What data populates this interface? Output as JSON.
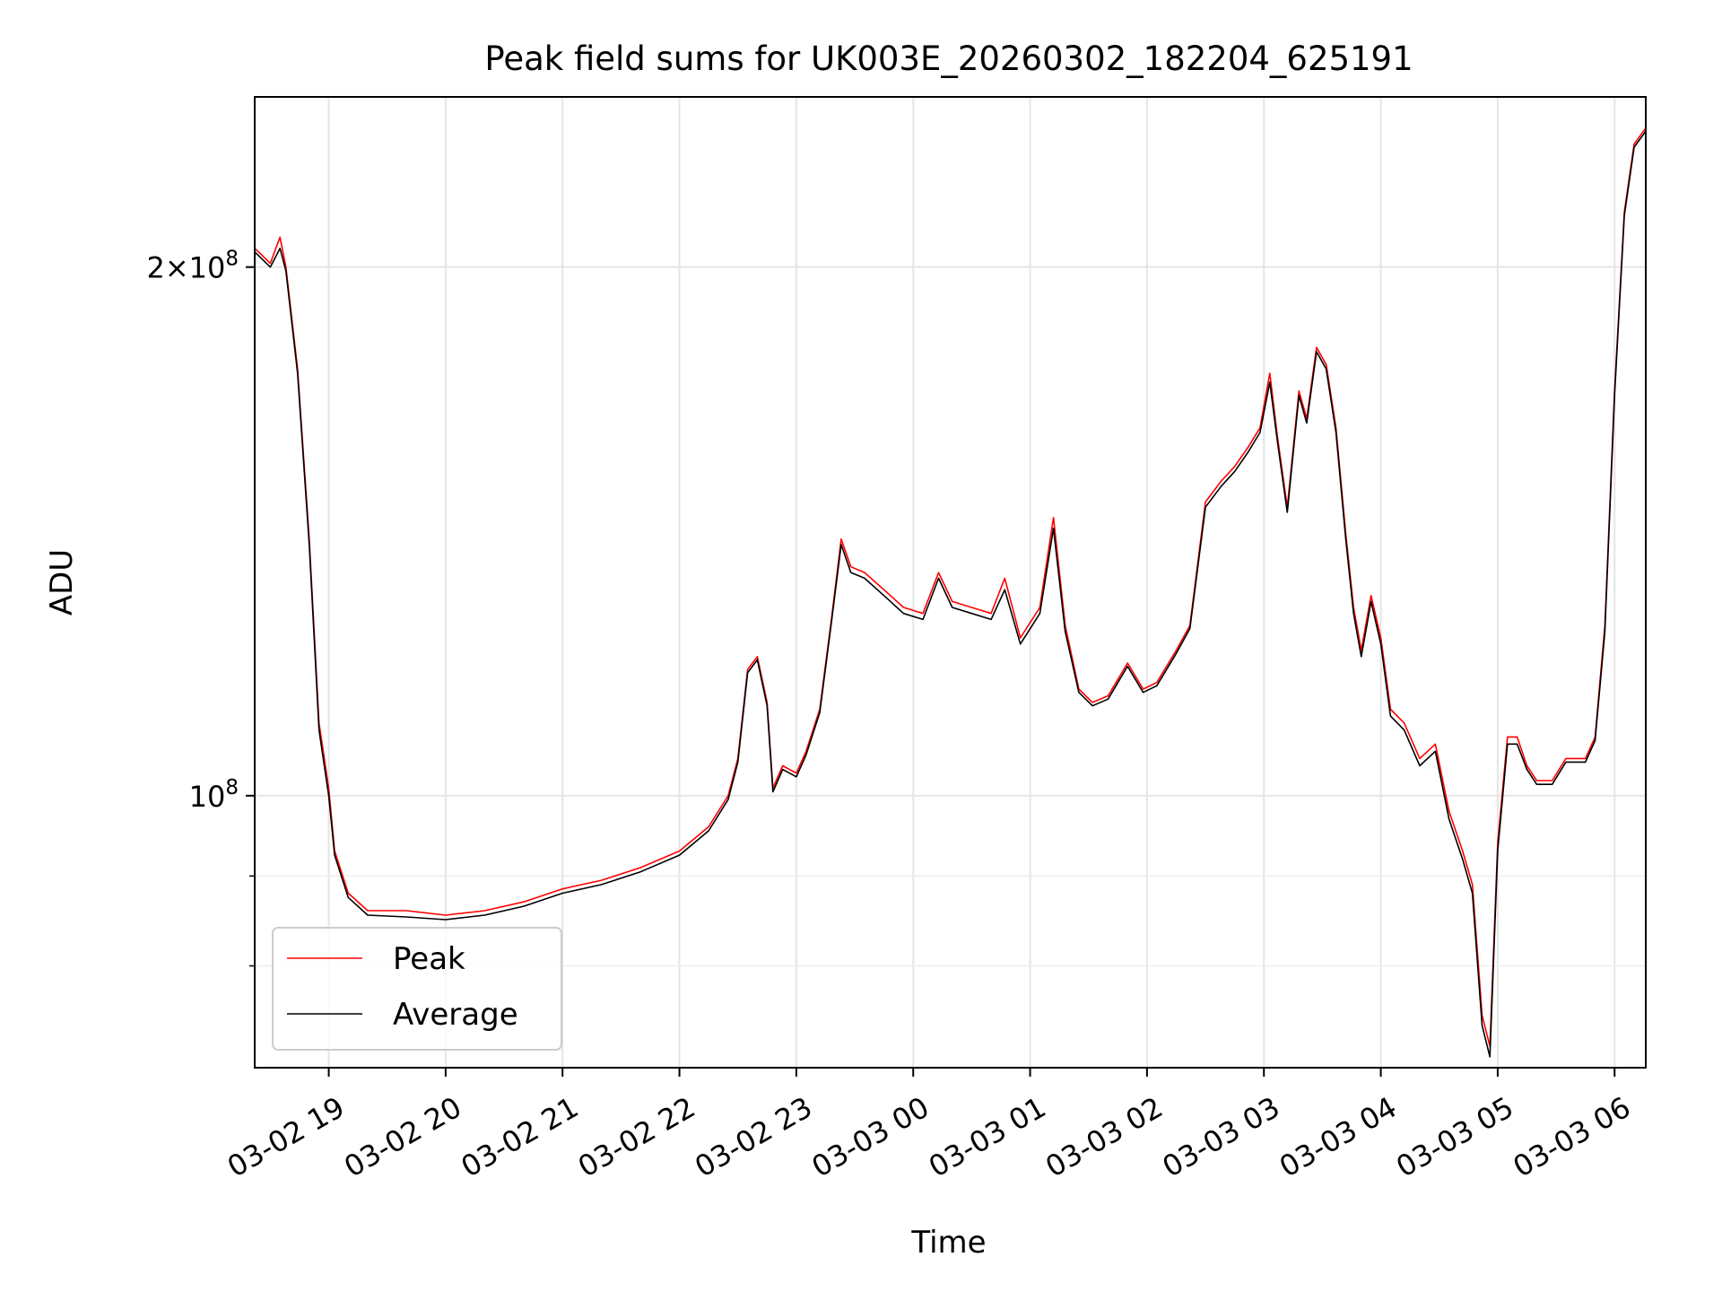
{
  "chart_data": {
    "type": "line",
    "title": "Peak field sums for UK003E_20260302_182204_625191",
    "xlabel": "Time",
    "ylabel": "ADU",
    "yscale": "log",
    "grid": true,
    "legend_placement": "lower-left",
    "xlim": [
      "2026-03-02 18:22",
      "2026-03-03 06:16"
    ],
    "ylim": [
      70000000,
      250000000
    ],
    "x_ticks": [
      {
        "t": "2026-03-02 19:00",
        "label": "03-02 19"
      },
      {
        "t": "2026-03-02 20:00",
        "label": "03-02 20"
      },
      {
        "t": "2026-03-02 21:00",
        "label": "03-02 21"
      },
      {
        "t": "2026-03-02 22:00",
        "label": "03-02 22"
      },
      {
        "t": "2026-03-02 23:00",
        "label": "03-02 23"
      },
      {
        "t": "2026-03-03 00:00",
        "label": "03-03 00"
      },
      {
        "t": "2026-03-03 01:00",
        "label": "03-03 01"
      },
      {
        "t": "2026-03-03 02:00",
        "label": "03-03 02"
      },
      {
        "t": "2026-03-03 03:00",
        "label": "03-03 03"
      },
      {
        "t": "2026-03-03 04:00",
        "label": "03-03 04"
      },
      {
        "t": "2026-03-03 05:00",
        "label": "03-03 05"
      },
      {
        "t": "2026-03-03 06:00",
        "label": "03-03 06"
      }
    ],
    "y_major_ticks": [
      {
        "v": 100000000,
        "base": "10",
        "exp": "8",
        "coef": ""
      },
      {
        "v": 200000000,
        "base": "10",
        "exp": "8",
        "coef": "2"
      }
    ],
    "y_minor_ticks": [
      80000000,
      90000000
    ],
    "series": [
      {
        "name": "Peak",
        "color": "#ff0000",
        "points": [
          [
            "2026-03-02 18:22",
            205000000
          ],
          [
            "2026-03-02 18:30",
            201000000
          ],
          [
            "2026-03-02 18:35",
            208000000
          ],
          [
            "2026-03-02 18:38",
            200000000
          ],
          [
            "2026-03-02 18:44",
            175000000
          ],
          [
            "2026-03-02 18:50",
            140000000
          ],
          [
            "2026-03-02 18:55",
            110000000
          ],
          [
            "2026-03-02 19:00",
            101000000
          ],
          [
            "2026-03-02 19:03",
            93000000
          ],
          [
            "2026-03-02 19:10",
            88000000
          ],
          [
            "2026-03-02 19:20",
            86000000
          ],
          [
            "2026-03-02 19:40",
            86000000
          ],
          [
            "2026-03-02 20:00",
            85500000
          ],
          [
            "2026-03-02 20:20",
            86000000
          ],
          [
            "2026-03-02 20:40",
            87000000
          ],
          [
            "2026-03-02 21:00",
            88500000
          ],
          [
            "2026-03-02 21:20",
            89500000
          ],
          [
            "2026-03-02 21:40",
            91000000
          ],
          [
            "2026-03-02 22:00",
            93000000
          ],
          [
            "2026-03-02 22:15",
            96000000
          ],
          [
            "2026-03-02 22:25",
            100000000
          ],
          [
            "2026-03-02 22:30",
            105000000
          ],
          [
            "2026-03-02 22:35",
            118000000
          ],
          [
            "2026-03-02 22:40",
            120000000
          ],
          [
            "2026-03-02 22:45",
            113000000
          ],
          [
            "2026-03-02 22:48",
            101000000
          ],
          [
            "2026-03-02 22:53",
            104000000
          ],
          [
            "2026-03-02 23:00",
            103000000
          ],
          [
            "2026-03-02 23:05",
            106000000
          ],
          [
            "2026-03-02 23:12",
            112000000
          ],
          [
            "2026-03-02 23:18",
            126000000
          ],
          [
            "2026-03-02 23:23",
            140000000
          ],
          [
            "2026-03-02 23:28",
            135000000
          ],
          [
            "2026-03-02 23:35",
            134000000
          ],
          [
            "2026-03-02 23:45",
            131000000
          ],
          [
            "2026-03-02 23:55",
            128000000
          ],
          [
            "2026-03-03 00:05",
            127000000
          ],
          [
            "2026-03-03 00:13",
            134000000
          ],
          [
            "2026-03-03 00:20",
            129000000
          ],
          [
            "2026-03-03 00:30",
            128000000
          ],
          [
            "2026-03-03 00:40",
            127000000
          ],
          [
            "2026-03-03 00:47",
            133000000
          ],
          [
            "2026-03-03 00:55",
            123000000
          ],
          [
            "2026-03-03 01:05",
            128000000
          ],
          [
            "2026-03-03 01:12",
            144000000
          ],
          [
            "2026-03-03 01:18",
            125000000
          ],
          [
            "2026-03-03 01:25",
            115000000
          ],
          [
            "2026-03-03 01:32",
            113000000
          ],
          [
            "2026-03-03 01:40",
            114000000
          ],
          [
            "2026-03-03 01:50",
            119000000
          ],
          [
            "2026-03-03 01:58",
            115000000
          ],
          [
            "2026-03-03 02:05",
            116000000
          ],
          [
            "2026-03-03 02:15",
            121000000
          ],
          [
            "2026-03-03 02:22",
            125000000
          ],
          [
            "2026-03-03 02:30",
            147000000
          ],
          [
            "2026-03-03 02:38",
            151000000
          ],
          [
            "2026-03-03 02:45",
            154000000
          ],
          [
            "2026-03-03 02:52",
            158000000
          ],
          [
            "2026-03-03 02:58",
            162000000
          ],
          [
            "2026-03-03 03:03",
            174000000
          ],
          [
            "2026-03-03 03:07",
            160000000
          ],
          [
            "2026-03-03 03:12",
            146000000
          ],
          [
            "2026-03-03 03:18",
            170000000
          ],
          [
            "2026-03-03 03:22",
            164000000
          ],
          [
            "2026-03-03 03:27",
            180000000
          ],
          [
            "2026-03-03 03:32",
            176000000
          ],
          [
            "2026-03-03 03:37",
            162000000
          ],
          [
            "2026-03-03 03:42",
            141000000
          ],
          [
            "2026-03-03 03:46",
            128000000
          ],
          [
            "2026-03-03 03:50",
            121000000
          ],
          [
            "2026-03-03 03:55",
            130000000
          ],
          [
            "2026-03-03 04:00",
            123000000
          ],
          [
            "2026-03-03 04:05",
            112000000
          ],
          [
            "2026-03-03 04:12",
            110000000
          ],
          [
            "2026-03-03 04:20",
            105000000
          ],
          [
            "2026-03-03 04:28",
            107000000
          ],
          [
            "2026-03-03 04:35",
            98000000
          ],
          [
            "2026-03-03 04:42",
            93000000
          ],
          [
            "2026-03-03 04:47",
            89000000
          ],
          [
            "2026-03-03 04:52",
            75000000
          ],
          [
            "2026-03-03 04:56",
            72000000
          ],
          [
            "2026-03-03 05:00",
            94000000
          ],
          [
            "2026-03-03 05:05",
            108000000
          ],
          [
            "2026-03-03 05:10",
            108000000
          ],
          [
            "2026-03-03 05:15",
            104000000
          ],
          [
            "2026-03-03 05:20",
            102000000
          ],
          [
            "2026-03-03 05:28",
            102000000
          ],
          [
            "2026-03-03 05:35",
            105000000
          ],
          [
            "2026-03-03 05:45",
            105000000
          ],
          [
            "2026-03-03 05:50",
            108000000
          ],
          [
            "2026-03-03 05:55",
            125000000
          ],
          [
            "2026-03-03 06:00",
            170000000
          ],
          [
            "2026-03-03 06:05",
            215000000
          ],
          [
            "2026-03-03 06:10",
            235000000
          ],
          [
            "2026-03-03 06:16",
            240000000
          ]
        ]
      },
      {
        "name": "Average",
        "color": "#000000",
        "points": [
          [
            "2026-03-02 18:22",
            204000000
          ],
          [
            "2026-03-02 18:30",
            200000000
          ],
          [
            "2026-03-02 18:35",
            205000000
          ],
          [
            "2026-03-02 18:38",
            199000000
          ],
          [
            "2026-03-02 18:44",
            174000000
          ],
          [
            "2026-03-02 18:50",
            139000000
          ],
          [
            "2026-03-02 18:55",
            109000000
          ],
          [
            "2026-03-02 19:00",
            100000000
          ],
          [
            "2026-03-02 19:03",
            92500000
          ],
          [
            "2026-03-02 19:10",
            87500000
          ],
          [
            "2026-03-02 19:20",
            85500000
          ],
          [
            "2026-03-02 19:40",
            85300000
          ],
          [
            "2026-03-02 20:00",
            85000000
          ],
          [
            "2026-03-02 20:20",
            85500000
          ],
          [
            "2026-03-02 20:40",
            86500000
          ],
          [
            "2026-03-02 21:00",
            88000000
          ],
          [
            "2026-03-02 21:20",
            89000000
          ],
          [
            "2026-03-02 21:40",
            90500000
          ],
          [
            "2026-03-02 22:00",
            92500000
          ],
          [
            "2026-03-02 22:15",
            95500000
          ],
          [
            "2026-03-02 22:25",
            99500000
          ],
          [
            "2026-03-02 22:30",
            104500000
          ],
          [
            "2026-03-02 22:35",
            117500000
          ],
          [
            "2026-03-02 22:40",
            119500000
          ],
          [
            "2026-03-02 22:45",
            112500000
          ],
          [
            "2026-03-02 22:48",
            100500000
          ],
          [
            "2026-03-02 22:53",
            103500000
          ],
          [
            "2026-03-02 23:00",
            102500000
          ],
          [
            "2026-03-02 23:05",
            105500000
          ],
          [
            "2026-03-02 23:12",
            111500000
          ],
          [
            "2026-03-02 23:18",
            125500000
          ],
          [
            "2026-03-02 23:23",
            139000000
          ],
          [
            "2026-03-02 23:28",
            134000000
          ],
          [
            "2026-03-02 23:35",
            133000000
          ],
          [
            "2026-03-02 23:45",
            130000000
          ],
          [
            "2026-03-02 23:55",
            127000000
          ],
          [
            "2026-03-03 00:05",
            126000000
          ],
          [
            "2026-03-03 00:13",
            133000000
          ],
          [
            "2026-03-03 00:20",
            128000000
          ],
          [
            "2026-03-03 00:30",
            127000000
          ],
          [
            "2026-03-03 00:40",
            126000000
          ],
          [
            "2026-03-03 00:47",
            131000000
          ],
          [
            "2026-03-03 00:55",
            122000000
          ],
          [
            "2026-03-03 01:05",
            127000000
          ],
          [
            "2026-03-03 01:12",
            142000000
          ],
          [
            "2026-03-03 01:18",
            124000000
          ],
          [
            "2026-03-03 01:25",
            114500000
          ],
          [
            "2026-03-03 01:32",
            112500000
          ],
          [
            "2026-03-03 01:40",
            113500000
          ],
          [
            "2026-03-03 01:50",
            118500000
          ],
          [
            "2026-03-03 01:58",
            114500000
          ],
          [
            "2026-03-03 02:05",
            115500000
          ],
          [
            "2026-03-03 02:15",
            120500000
          ],
          [
            "2026-03-03 02:22",
            124500000
          ],
          [
            "2026-03-03 02:30",
            146000000
          ],
          [
            "2026-03-03 02:38",
            150000000
          ],
          [
            "2026-03-03 02:45",
            153000000
          ],
          [
            "2026-03-03 02:52",
            157000000
          ],
          [
            "2026-03-03 02:58",
            161000000
          ],
          [
            "2026-03-03 03:03",
            172000000
          ],
          [
            "2026-03-03 03:07",
            159000000
          ],
          [
            "2026-03-03 03:12",
            145000000
          ],
          [
            "2026-03-03 03:18",
            169000000
          ],
          [
            "2026-03-03 03:22",
            163000000
          ],
          [
            "2026-03-03 03:27",
            179000000
          ],
          [
            "2026-03-03 03:32",
            175000000
          ],
          [
            "2026-03-03 03:37",
            161000000
          ],
          [
            "2026-03-03 03:42",
            140000000
          ],
          [
            "2026-03-03 03:46",
            127000000
          ],
          [
            "2026-03-03 03:50",
            120000000
          ],
          [
            "2026-03-03 03:55",
            129000000
          ],
          [
            "2026-03-03 04:00",
            122000000
          ],
          [
            "2026-03-03 04:05",
            111000000
          ],
          [
            "2026-03-03 04:12",
            109000000
          ],
          [
            "2026-03-03 04:20",
            104000000
          ],
          [
            "2026-03-03 04:28",
            106000000
          ],
          [
            "2026-03-03 04:35",
            97000000
          ],
          [
            "2026-03-03 04:42",
            92000000
          ],
          [
            "2026-03-03 04:47",
            88000000
          ],
          [
            "2026-03-03 04:52",
            74000000
          ],
          [
            "2026-03-03 04:56",
            71000000
          ],
          [
            "2026-03-03 05:00",
            93000000
          ],
          [
            "2026-03-03 05:05",
            107000000
          ],
          [
            "2026-03-03 05:10",
            107000000
          ],
          [
            "2026-03-03 05:15",
            103500000
          ],
          [
            "2026-03-03 05:20",
            101500000
          ],
          [
            "2026-03-03 05:28",
            101500000
          ],
          [
            "2026-03-03 05:35",
            104500000
          ],
          [
            "2026-03-03 05:45",
            104500000
          ],
          [
            "2026-03-03 05:50",
            107500000
          ],
          [
            "2026-03-03 05:55",
            124000000
          ],
          [
            "2026-03-03 06:00",
            169000000
          ],
          [
            "2026-03-03 06:05",
            214000000
          ],
          [
            "2026-03-03 06:10",
            234000000
          ],
          [
            "2026-03-03 06:16",
            239000000
          ]
        ]
      }
    ]
  }
}
